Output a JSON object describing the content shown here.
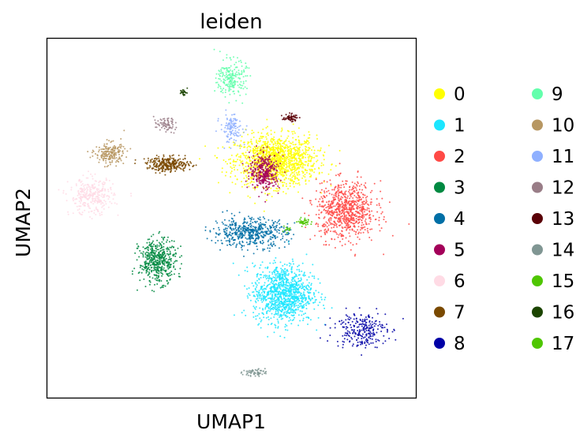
{
  "chart_data": {
    "type": "scatter",
    "title": "leiden",
    "xlabel": "UMAP1",
    "ylabel": "UMAP2",
    "xlim": [
      0,
      100
    ],
    "ylim": [
      0,
      100
    ],
    "xticks": [],
    "yticks": [],
    "grid": false,
    "legend_position": "right, outside plot, two columns",
    "categories": [
      {
        "name": "0",
        "color": "#ffff00",
        "cx": 62,
        "cy": 66,
        "rx": 11,
        "ry": 7,
        "n": 1400
      },
      {
        "name": "1",
        "color": "#1ce6ff",
        "cx": 64,
        "cy": 29,
        "rx": 8,
        "ry": 8,
        "n": 1100
      },
      {
        "name": "2",
        "color": "#ff4a46",
        "cx": 81,
        "cy": 52,
        "rx": 8,
        "ry": 8,
        "n": 800
      },
      {
        "name": "3",
        "color": "#008941",
        "cx": 30,
        "cy": 38,
        "rx": 5,
        "ry": 6,
        "n": 480
      },
      {
        "name": "4",
        "color": "#006fa6",
        "cx": 55,
        "cy": 46,
        "rx": 10,
        "ry": 4,
        "n": 520
      },
      {
        "name": "5",
        "color": "#a30059",
        "cx": 59,
        "cy": 63,
        "rx": 4,
        "ry": 5,
        "n": 340
      },
      {
        "name": "6",
        "color": "#ffdbe5",
        "cx": 12,
        "cy": 56,
        "rx": 6,
        "ry": 5,
        "n": 320
      },
      {
        "name": "7",
        "color": "#7a4900",
        "cx": 33,
        "cy": 65,
        "rx": 6,
        "ry": 2,
        "n": 300
      },
      {
        "name": "8",
        "color": "#0000a6",
        "cx": 85,
        "cy": 19,
        "rx": 7,
        "ry": 5,
        "n": 260
      },
      {
        "name": "9",
        "color": "#63ffac",
        "cx": 50,
        "cy": 89,
        "rx": 4,
        "ry": 5,
        "n": 220
      },
      {
        "name": "10",
        "color": "#b79762",
        "cx": 17,
        "cy": 68,
        "rx": 4,
        "ry": 3,
        "n": 200
      },
      {
        "name": "11",
        "color": "#8fb0ff",
        "cx": 50,
        "cy": 75,
        "rx": 3,
        "ry": 4,
        "n": 120
      },
      {
        "name": "12",
        "color": "#997d87",
        "cx": 32,
        "cy": 76,
        "rx": 3,
        "ry": 2,
        "n": 70
      },
      {
        "name": "13",
        "color": "#5a0007",
        "cx": 66,
        "cy": 78,
        "rx": 2,
        "ry": 1,
        "n": 60
      },
      {
        "name": "14",
        "color": "#809693",
        "cx": 56,
        "cy": 7,
        "rx": 3,
        "ry": 1,
        "n": 60
      },
      {
        "name": "15",
        "color": "#4fc601",
        "cx": 70,
        "cy": 49,
        "rx": 2,
        "ry": 1,
        "n": 40
      },
      {
        "name": "16",
        "color": "#1b4400",
        "cx": 37,
        "cy": 85,
        "rx": 1,
        "ry": 1,
        "n": 25
      },
      {
        "name": "17",
        "color": "#4fc601",
        "cx": 65,
        "cy": 47,
        "rx": 1,
        "ry": 1,
        "n": 15
      }
    ]
  }
}
